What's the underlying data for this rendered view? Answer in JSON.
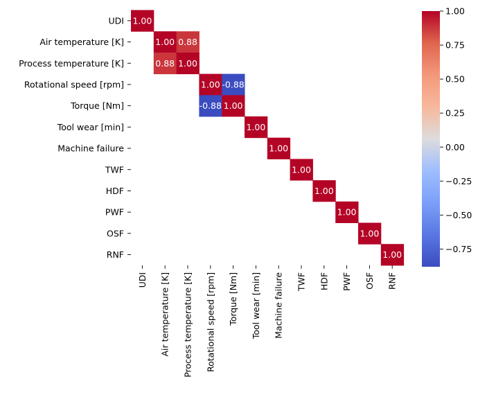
{
  "chart_data": {
    "type": "heatmap",
    "title": "",
    "xlabel": "",
    "ylabel": "",
    "labels": [
      "UDI",
      "Air temperature [K]",
      "Process temperature [K]",
      "Rotational speed [rpm]",
      "Torque [Nm]",
      "Tool wear [min]",
      "Machine failure",
      "TWF",
      "HDF",
      "PWF",
      "OSF",
      "RNF"
    ],
    "cells": [
      {
        "row": 0,
        "col": 0,
        "value": 1.0,
        "label": "1.00"
      },
      {
        "row": 1,
        "col": 1,
        "value": 1.0,
        "label": "1.00"
      },
      {
        "row": 1,
        "col": 2,
        "value": 0.88,
        "label": "0.88"
      },
      {
        "row": 2,
        "col": 1,
        "value": 0.88,
        "label": "0.88"
      },
      {
        "row": 2,
        "col": 2,
        "value": 1.0,
        "label": "1.00"
      },
      {
        "row": 3,
        "col": 3,
        "value": 1.0,
        "label": "1.00"
      },
      {
        "row": 3,
        "col": 4,
        "value": -0.88,
        "label": "-0.88"
      },
      {
        "row": 4,
        "col": 3,
        "value": -0.88,
        "label": "-0.88"
      },
      {
        "row": 4,
        "col": 4,
        "value": 1.0,
        "label": "1.00"
      },
      {
        "row": 5,
        "col": 5,
        "value": 1.0,
        "label": "1.00"
      },
      {
        "row": 6,
        "col": 6,
        "value": 1.0,
        "label": "1.00"
      },
      {
        "row": 7,
        "col": 7,
        "value": 1.0,
        "label": "1.00"
      },
      {
        "row": 8,
        "col": 8,
        "value": 1.0,
        "label": "1.00"
      },
      {
        "row": 9,
        "col": 9,
        "value": 1.0,
        "label": "1.00"
      },
      {
        "row": 10,
        "col": 10,
        "value": 1.0,
        "label": "1.00"
      },
      {
        "row": 11,
        "col": 11,
        "value": 1.0,
        "label": "1.00"
      }
    ],
    "colorbar": {
      "colormap": "coolwarm",
      "vmin": -0.88,
      "vmax": 1.0,
      "ticks": [
        1.0,
        0.75,
        0.5,
        0.25,
        0.0,
        -0.25,
        -0.5,
        -0.75
      ],
      "tick_labels": [
        "1.00",
        "0.75",
        "0.50",
        "0.25",
        "0.00",
        "−0.25",
        "−0.50",
        "−0.75"
      ]
    },
    "colors": {
      "text_on_cell": "#ffffff",
      "axis_text": "#000000"
    }
  }
}
